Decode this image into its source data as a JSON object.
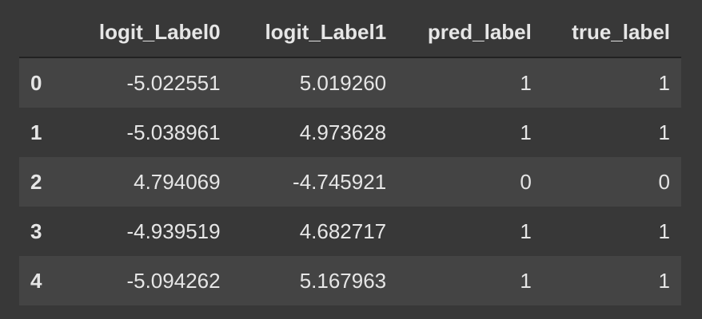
{
  "table": {
    "columns": [
      "",
      "logit_Label0",
      "logit_Label1",
      "pred_label",
      "true_label"
    ],
    "rows": [
      [
        "0",
        "-5.022551",
        "5.019260",
        "1",
        "1"
      ],
      [
        "1",
        "-5.038961",
        "4.973628",
        "1",
        "1"
      ],
      [
        "2",
        "4.794069",
        "-4.745921",
        "0",
        "0"
      ],
      [
        "3",
        "-4.939519",
        "4.682717",
        "1",
        "1"
      ],
      [
        "4",
        "-5.094262",
        "5.167963",
        "1",
        "1"
      ]
    ]
  },
  "colors": {
    "background": "#383838",
    "stripe": "#444444",
    "text": "#e6e6e6"
  }
}
